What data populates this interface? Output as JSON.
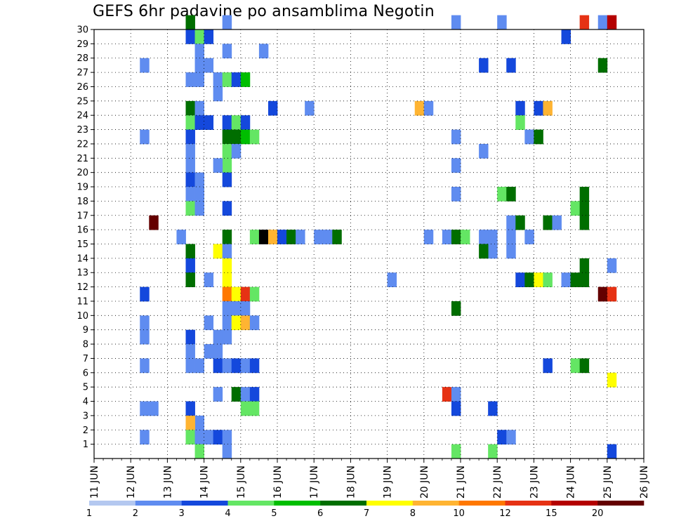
{
  "chart_data": {
    "type": "heatmap",
    "title": "GEFS 6hr padavine po ansamblima Negotin",
    "xlabel": "",
    "ylabel": "",
    "x_ticks": [
      "11 JUN",
      "12 JUN",
      "13 JUN",
      "14 JUN",
      "15 JUN",
      "16 JUN",
      "17 JUN",
      "18 JUN",
      "19 JUN",
      "20 JUN",
      "21 JUN",
      "22 JUN",
      "23 JUN",
      "24 JUN",
      "25 JUN",
      "26 JUN"
    ],
    "y_ticks": [
      "1",
      "2",
      "3",
      "4",
      "5",
      "6",
      "7",
      "8",
      "9",
      "10",
      "11",
      "12",
      "13",
      "14",
      "15",
      "16",
      "17",
      "18",
      "19",
      "20",
      "21",
      "22",
      "23",
      "24",
      "25",
      "26",
      "27",
      "28",
      "29",
      "30"
    ],
    "xlim": [
      0,
      60
    ],
    "ylim": [
      0,
      30
    ],
    "grid": true,
    "colorbar": {
      "labels": [
        "1",
        "2",
        "3",
        "4",
        "5",
        "6",
        "7",
        "8",
        "10",
        "12",
        "15",
        "20"
      ],
      "colors": [
        "#b4c8f0",
        "#5f8cf0",
        "#1448dc",
        "#64e664",
        "#00be00",
        "#006e00",
        "#ffff00",
        "#ffb432",
        "#ff7800",
        "#e63214",
        "#b40000",
        "#640000"
      ]
    },
    "cells": [
      [
        5,
        1,
        1
      ],
      [
        6,
        16,
        11
      ],
      [
        5,
        3,
        1
      ],
      [
        6,
        3,
        1
      ],
      [
        10,
        30,
        5
      ],
      [
        10,
        29,
        2
      ],
      [
        11,
        29,
        3
      ],
      [
        12,
        29,
        2
      ],
      [
        11,
        28,
        1
      ],
      [
        11,
        27,
        1
      ],
      [
        10,
        26,
        1
      ],
      [
        11,
        26,
        1
      ],
      [
        10,
        24,
        5
      ],
      [
        11,
        24,
        1
      ],
      [
        10,
        23,
        3
      ],
      [
        11,
        23,
        2
      ],
      [
        12,
        23,
        2
      ],
      [
        10,
        22,
        2
      ],
      [
        10,
        21,
        1
      ],
      [
        10,
        20,
        1
      ],
      [
        10,
        19,
        2
      ],
      [
        11,
        19,
        1
      ],
      [
        10,
        18,
        1
      ],
      [
        11,
        18,
        1
      ],
      [
        10,
        17,
        3
      ],
      [
        11,
        17,
        1
      ],
      [
        9,
        15,
        1
      ],
      [
        10,
        14,
        5
      ],
      [
        10,
        13,
        2
      ],
      [
        10,
        12,
        5
      ],
      [
        10,
        8,
        2
      ],
      [
        10,
        7,
        1
      ],
      [
        10,
        6,
        1
      ],
      [
        11,
        6,
        1
      ],
      [
        10,
        3,
        2
      ],
      [
        11,
        2,
        1
      ],
      [
        10,
        2,
        7
      ],
      [
        10,
        1,
        3
      ],
      [
        11,
        1,
        1
      ],
      [
        11,
        0,
        3
      ],
      [
        5,
        27,
        1
      ],
      [
        5,
        22,
        1
      ],
      [
        5,
        9,
        1
      ],
      [
        5,
        8,
        1
      ],
      [
        5,
        6,
        1
      ],
      [
        5,
        11,
        2
      ],
      [
        12,
        27,
        1
      ],
      [
        13,
        26,
        1
      ],
      [
        12,
        9,
        1
      ],
      [
        12,
        7,
        1
      ],
      [
        13,
        6,
        2
      ],
      [
        13,
        4,
        1
      ],
      [
        12,
        12,
        1
      ],
      [
        12,
        1,
        1
      ],
      [
        14,
        30,
        1
      ],
      [
        14,
        28,
        1
      ],
      [
        14,
        26,
        3
      ],
      [
        15,
        26,
        2
      ],
      [
        16,
        26,
        4
      ],
      [
        13,
        25,
        1
      ],
      [
        14,
        23,
        2
      ],
      [
        15,
        23,
        3
      ],
      [
        16,
        23,
        2
      ],
      [
        14,
        22,
        5
      ],
      [
        15,
        22,
        5
      ],
      [
        16,
        22,
        4
      ],
      [
        17,
        22,
        3
      ],
      [
        14,
        21,
        3
      ],
      [
        15,
        21,
        1
      ],
      [
        14,
        20,
        3
      ],
      [
        13,
        20,
        1
      ],
      [
        14,
        19,
        2
      ],
      [
        14,
        17,
        2
      ],
      [
        14,
        15,
        5
      ],
      [
        13,
        14,
        6
      ],
      [
        14,
        14,
        1
      ],
      [
        14,
        13,
        6
      ],
      [
        14,
        12,
        6
      ],
      [
        14,
        11,
        8
      ],
      [
        15,
        11,
        6
      ],
      [
        16,
        11,
        9
      ],
      [
        17,
        11,
        3
      ],
      [
        14,
        10,
        1
      ],
      [
        15,
        10,
        1
      ],
      [
        16,
        10,
        1
      ],
      [
        14,
        9,
        1
      ],
      [
        15,
        9,
        6
      ],
      [
        16,
        9,
        7
      ],
      [
        17,
        9,
        1
      ],
      [
        13,
        8,
        1
      ],
      [
        14,
        8,
        1
      ],
      [
        13,
        7,
        1
      ],
      [
        14,
        6,
        1
      ],
      [
        15,
        6,
        2
      ],
      [
        16,
        6,
        1
      ],
      [
        17,
        6,
        2
      ],
      [
        15,
        4,
        5
      ],
      [
        16,
        4,
        1
      ],
      [
        17,
        4,
        2
      ],
      [
        16,
        3,
        3
      ],
      [
        17,
        3,
        3
      ],
      [
        13,
        1,
        2
      ],
      [
        14,
        1,
        1
      ],
      [
        14,
        0,
        1
      ],
      [
        18,
        28,
        1
      ],
      [
        19,
        24,
        2
      ],
      [
        17,
        15,
        3
      ],
      [
        18,
        15,
        12
      ],
      [
        19,
        15,
        7
      ],
      [
        20,
        15,
        2
      ],
      [
        21,
        15,
        5
      ],
      [
        22,
        15,
        1
      ],
      [
        24,
        15,
        1
      ],
      [
        25,
        15,
        1
      ],
      [
        26,
        15,
        5
      ],
      [
        23,
        24,
        1
      ],
      [
        32,
        12,
        1
      ],
      [
        35,
        24,
        7
      ],
      [
        36,
        24,
        1
      ],
      [
        36,
        15,
        1
      ],
      [
        39,
        30,
        1
      ],
      [
        39,
        22,
        1
      ],
      [
        39,
        20,
        1
      ],
      [
        39,
        18,
        1
      ],
      [
        38,
        15,
        1
      ],
      [
        39,
        15,
        5
      ],
      [
        40,
        15,
        3
      ],
      [
        39,
        10,
        5
      ],
      [
        38,
        4,
        9
      ],
      [
        39,
        4,
        1
      ],
      [
        39,
        3,
        2
      ],
      [
        39,
        0,
        3
      ],
      [
        42,
        27,
        2
      ],
      [
        42,
        15,
        1
      ],
      [
        43,
        15,
        1
      ],
      [
        43,
        14,
        1
      ],
      [
        42,
        14,
        5
      ],
      [
        42,
        21,
        1
      ],
      [
        43,
        0,
        3
      ],
      [
        43,
        3,
        2
      ],
      [
        44,
        30,
        1
      ],
      [
        45,
        27,
        2
      ],
      [
        44,
        18,
        3
      ],
      [
        45,
        18,
        5
      ],
      [
        44,
        1,
        2
      ],
      [
        45,
        1,
        1
      ],
      [
        46,
        24,
        2
      ],
      [
        46,
        23,
        3
      ],
      [
        47,
        22,
        1
      ],
      [
        48,
        22,
        5
      ],
      [
        45,
        16,
        1
      ],
      [
        46,
        16,
        5
      ],
      [
        45,
        15,
        1
      ],
      [
        47,
        15,
        1
      ],
      [
        45,
        14,
        1
      ],
      [
        46,
        12,
        2
      ],
      [
        47,
        12,
        5
      ],
      [
        48,
        12,
        6
      ],
      [
        49,
        12,
        3
      ],
      [
        48,
        24,
        2
      ],
      [
        49,
        24,
        7
      ],
      [
        49,
        16,
        5
      ],
      [
        50,
        16,
        1
      ],
      [
        51,
        12,
        1
      ],
      [
        52,
        12,
        5
      ],
      [
        53,
        12,
        5
      ],
      [
        49,
        6,
        2
      ],
      [
        51,
        29,
        2
      ],
      [
        53,
        30,
        9
      ],
      [
        53,
        18,
        5
      ],
      [
        52,
        17,
        3
      ],
      [
        53,
        17,
        5
      ],
      [
        53,
        16,
        5
      ],
      [
        53,
        13,
        5
      ],
      [
        52,
        6,
        3
      ],
      [
        53,
        6,
        5
      ],
      [
        55,
        30,
        1
      ],
      [
        56,
        30,
        10
      ],
      [
        55,
        27,
        5
      ],
      [
        55,
        11,
        11
      ],
      [
        56,
        11,
        9
      ],
      [
        56,
        13,
        1
      ],
      [
        56,
        5,
        6
      ],
      [
        56,
        0,
        2
      ]
    ]
  }
}
